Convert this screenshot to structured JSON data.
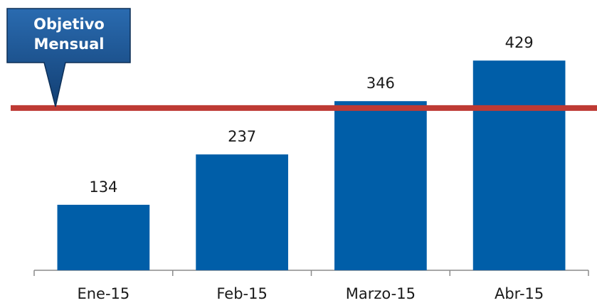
{
  "chart_data": {
    "type": "bar",
    "categories": [
      "Ene-15",
      "Feb-15",
      "Marzo-15",
      "Abr-15"
    ],
    "values": [
      134,
      237,
      346,
      429
    ],
    "color": "#005ea8",
    "ylim": [
      0,
      550
    ],
    "target": {
      "label": "Objetivo Mensual",
      "value": 332,
      "color": "#be3a34"
    }
  }
}
